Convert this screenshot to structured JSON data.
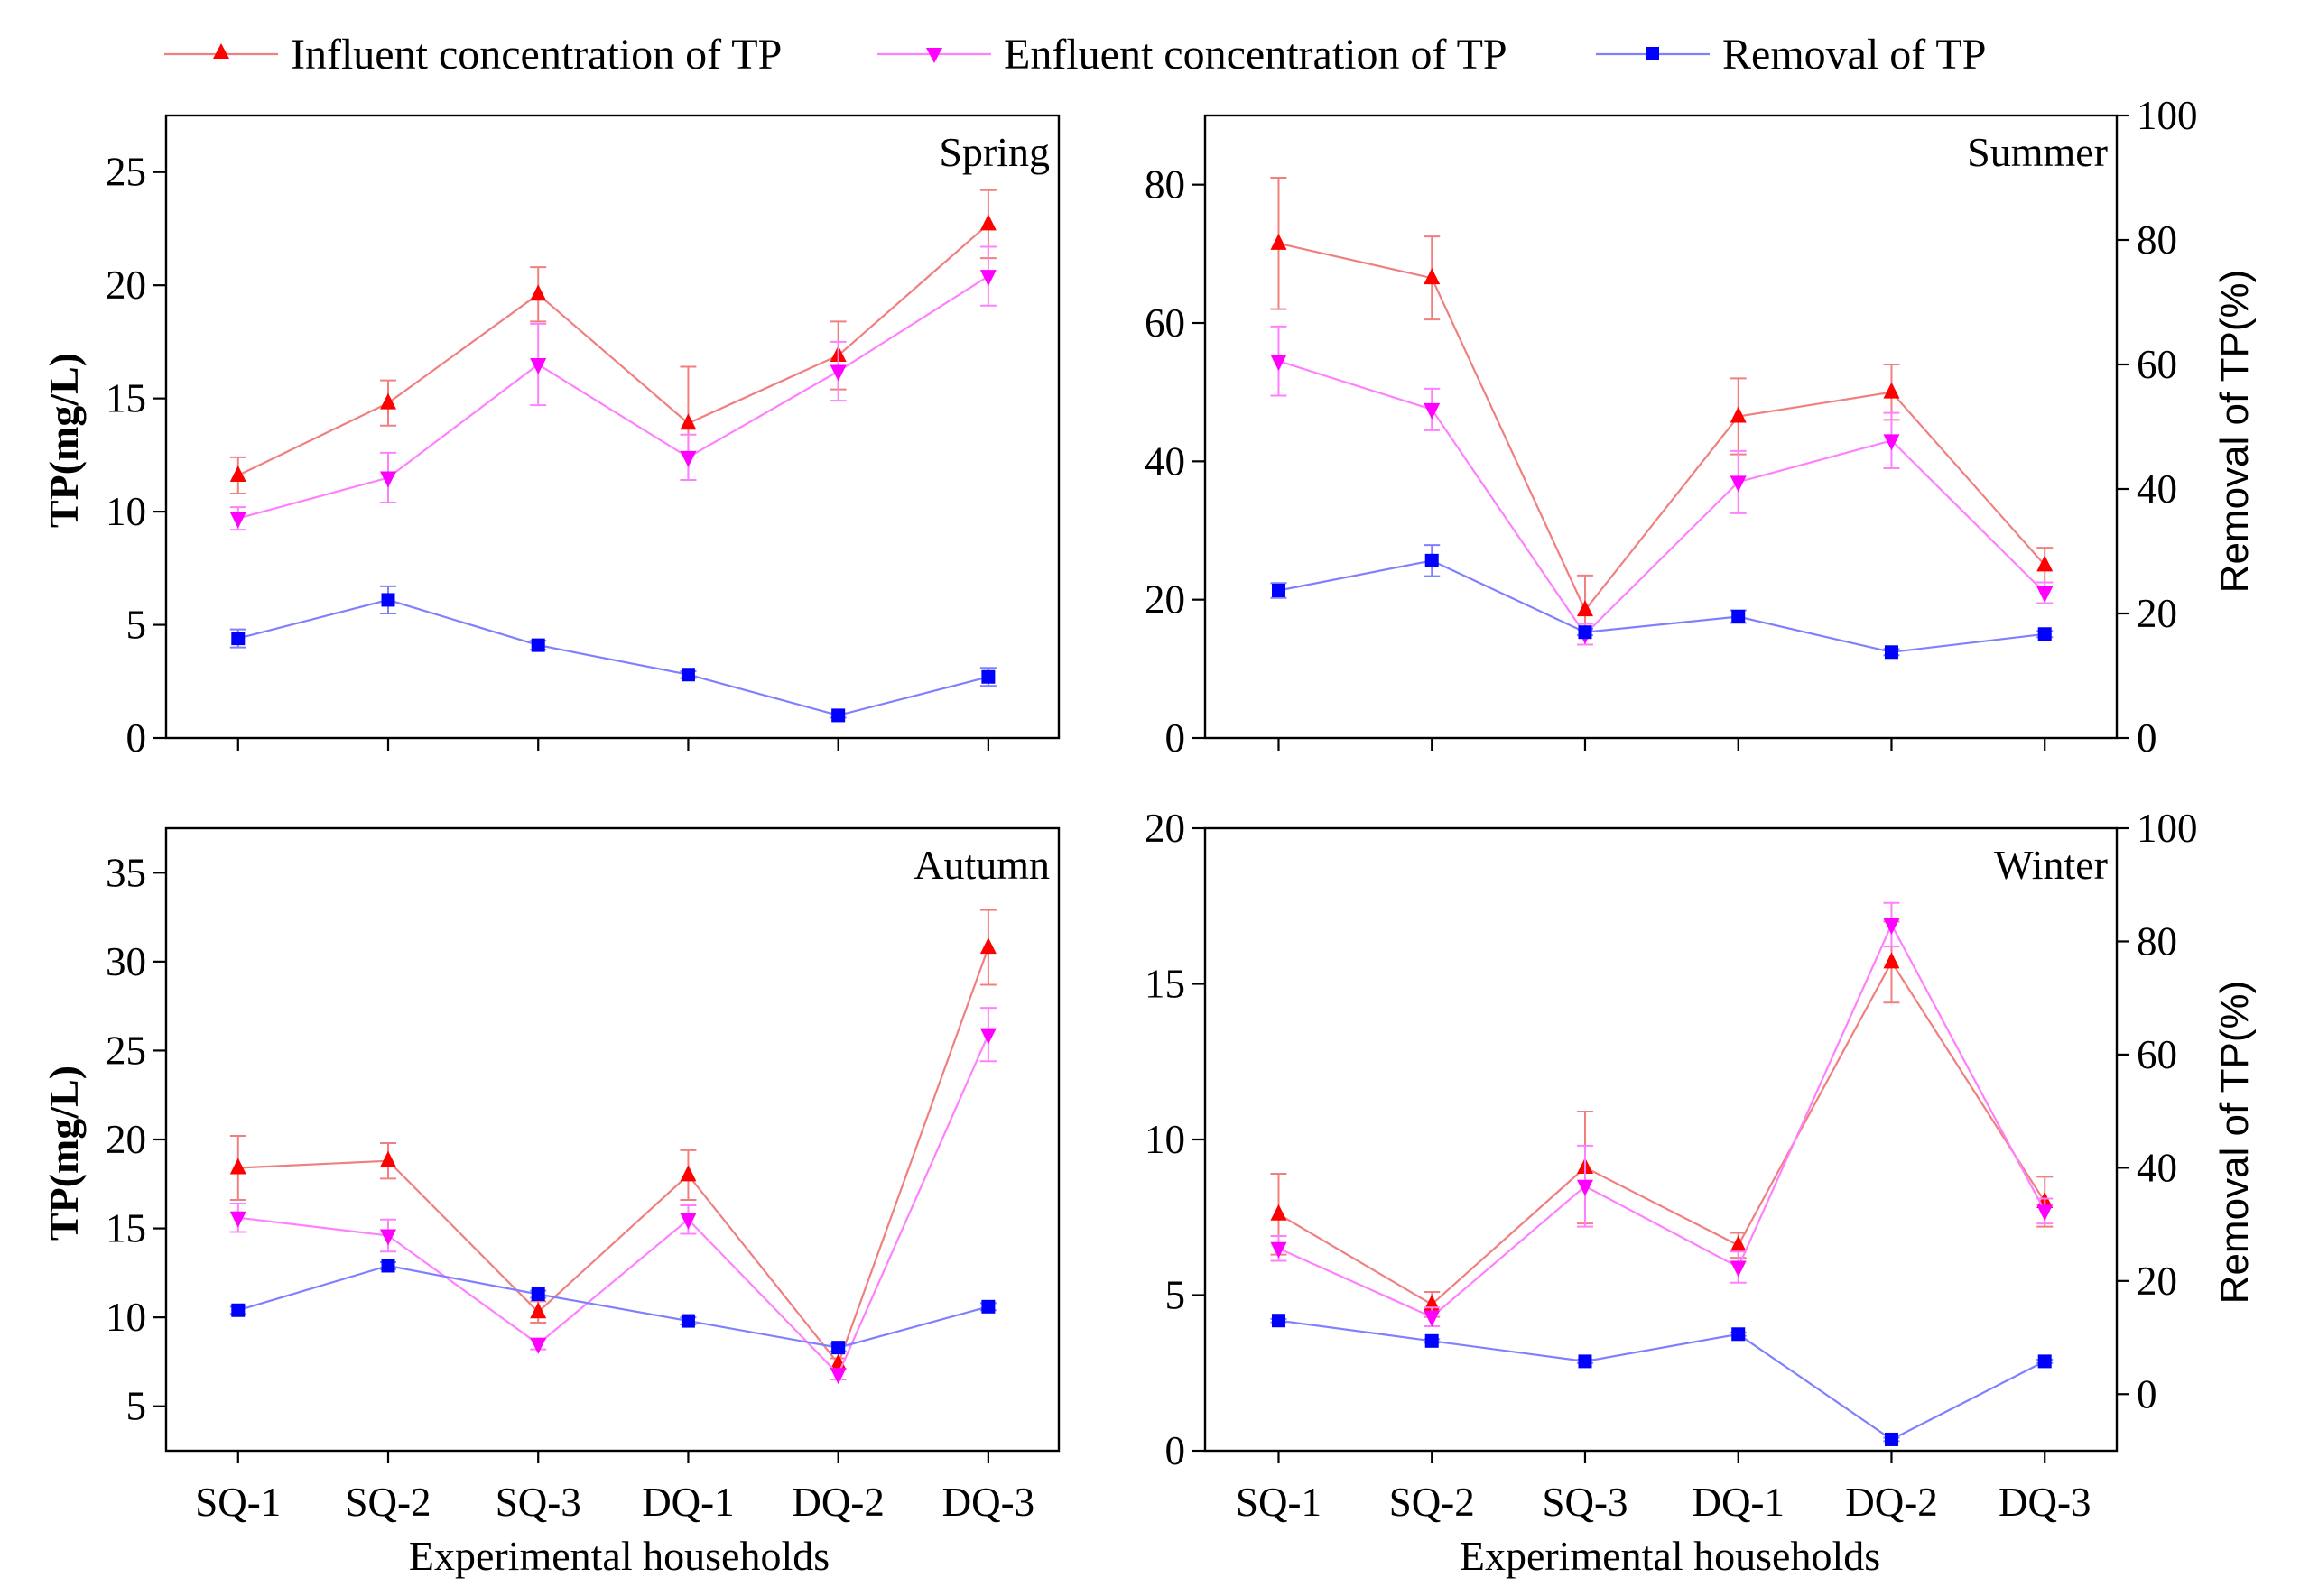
{
  "legend": {
    "influent": "Influent concentration of TP",
    "effluent": "Enfluent concentration of TP",
    "removal": "Removal of TP"
  },
  "colors": {
    "influent": "#ff0000",
    "influent_line": "#f08080",
    "effluent": "#ff00ff",
    "effluent_line": "#ff80ff",
    "removal": "#0000ff",
    "removal_line": "#8080ff"
  },
  "chart_data": [
    {
      "type": "line",
      "title": "Spring",
      "categories": [
        "SQ-1",
        "SQ-2",
        "SQ-3",
        "DQ-1",
        "DQ-2",
        "DQ-3"
      ],
      "xlabel": "",
      "ylabel": "TP(mg/L)",
      "ylim": [
        0,
        27.5
      ],
      "yticks": [
        0,
        5,
        10,
        15,
        20,
        25
      ],
      "series": [
        {
          "name": "Influent concentration of TP",
          "values": [
            11.6,
            14.8,
            19.6,
            13.9,
            16.9,
            22.7
          ],
          "errors": [
            0.8,
            1.0,
            1.2,
            2.5,
            1.5,
            1.5
          ]
        },
        {
          "name": "Enfluent concentration of TP",
          "values": [
            9.7,
            11.5,
            16.5,
            12.4,
            16.2,
            20.4
          ],
          "errors": [
            0.5,
            1.1,
            1.8,
            1.0,
            1.3,
            1.3
          ]
        },
        {
          "name": "Removal of TP",
          "values": [
            4.4,
            6.1,
            4.1,
            2.8,
            1.0,
            2.7
          ],
          "errors": [
            0.4,
            0.6,
            0.2,
            0.15,
            0.1,
            0.4
          ]
        }
      ]
    },
    {
      "type": "line",
      "title": "Summer",
      "categories": [
        "SQ-1",
        "SQ-2",
        "SQ-3",
        "DQ-1",
        "DQ-2",
        "DQ-3"
      ],
      "xlabel": "",
      "ylabel": "",
      "ylim": [
        0,
        90
      ],
      "yticks": [
        0,
        20,
        40,
        60,
        80
      ],
      "y2label": "Removal of TP(%)",
      "y2lim": [
        0,
        100
      ],
      "y2ticks": [
        0,
        20,
        40,
        60,
        80,
        100
      ],
      "series": [
        {
          "name": "Influent concentration of TP",
          "values": [
            71.5,
            66.5,
            18.5,
            46.5,
            50.0,
            25.0
          ],
          "errors": [
            9.5,
            6.0,
            5.0,
            5.5,
            4.0,
            2.5
          ]
        },
        {
          "name": "Enfluent concentration of TP",
          "values": [
            54.5,
            47.5,
            15.0,
            37.0,
            43.0,
            21.0
          ],
          "errors": [
            5.0,
            3.0,
            1.5,
            4.5,
            4.0,
            1.5
          ]
        },
        {
          "name": "Removal of TP",
          "axis": "right",
          "values": [
            23.7,
            28.5,
            17.0,
            19.5,
            13.8,
            16.7
          ],
          "errors": [
            1.2,
            2.5,
            0.5,
            1.0,
            0.5,
            0.5
          ]
        }
      ]
    },
    {
      "type": "line",
      "title": "Autumn",
      "categories": [
        "SQ-1",
        "SQ-2",
        "SQ-3",
        "DQ-1",
        "DQ-2",
        "DQ-3"
      ],
      "xlabel": "Experimental households",
      "ylabel": "TP(mg/L)",
      "ylim": [
        2.5,
        37.5
      ],
      "yticks": [
        5,
        10,
        15,
        20,
        25,
        30,
        35
      ],
      "series": [
        {
          "name": "Influent concentration of TP",
          "values": [
            18.4,
            18.8,
            10.3,
            18.0,
            7.4,
            30.8
          ],
          "errors": [
            1.8,
            1.0,
            0.6,
            1.4,
            0.3,
            2.1
          ]
        },
        {
          "name": "Enfluent concentration of TP",
          "values": [
            15.6,
            14.6,
            8.5,
            15.5,
            6.8,
            25.9
          ],
          "errors": [
            0.8,
            0.9,
            0.3,
            0.8,
            0.3,
            1.5
          ]
        },
        {
          "name": "Removal of TP",
          "values": [
            10.4,
            12.9,
            11.3,
            9.8,
            8.3,
            10.6
          ],
          "errors": [
            0.2,
            0.2,
            0.2,
            0.2,
            0.2,
            0.2
          ]
        }
      ]
    },
    {
      "type": "line",
      "title": "Winter",
      "categories": [
        "SQ-1",
        "SQ-2",
        "SQ-3",
        "DQ-1",
        "DQ-2",
        "DQ-3"
      ],
      "xlabel": "Experimental households",
      "ylabel": "",
      "ylim": [
        0,
        20
      ],
      "yticks": [
        0,
        5,
        10,
        15,
        20
      ],
      "y2label": "Removal of TP(%)",
      "y2lim": [
        -10,
        100
      ],
      "y2ticks": [
        0,
        20,
        40,
        60,
        80,
        100
      ],
      "series": [
        {
          "name": "Influent concentration of TP",
          "values": [
            7.6,
            4.7,
            9.1,
            6.6,
            15.7,
            8.0
          ],
          "errors": [
            1.3,
            0.4,
            1.8,
            0.4,
            1.3,
            0.8
          ]
        },
        {
          "name": "Enfluent concentration of TP",
          "values": [
            6.5,
            4.3,
            8.5,
            5.9,
            16.9,
            7.7
          ],
          "errors": [
            0.4,
            0.3,
            1.3,
            0.5,
            0.7,
            0.4
          ]
        },
        {
          "name": "Removal of TP",
          "axis": "right",
          "values": [
            13.0,
            9.4,
            5.8,
            10.6,
            -8.0,
            5.8
          ],
          "errors": [
            0.3,
            0.3,
            0.3,
            0.3,
            0.3,
            0.3
          ]
        }
      ]
    }
  ]
}
